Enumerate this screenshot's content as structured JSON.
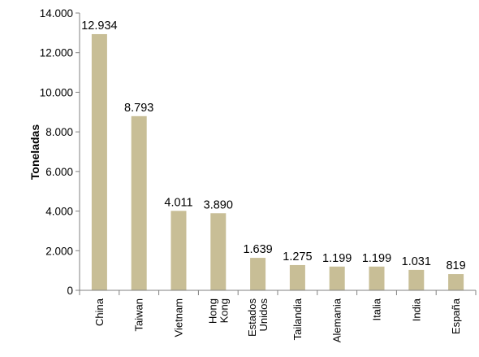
{
  "chart_data": {
    "type": "bar",
    "title": "",
    "xlabel": "",
    "ylabel": "Toneladas",
    "ylim": [
      0,
      14000
    ],
    "yticks": [
      0,
      2000,
      4000,
      6000,
      8000,
      10000,
      12000,
      14000
    ],
    "ytick_labels": [
      "0",
      "2.000",
      "4.000",
      "6.000",
      "8.000",
      "10.000",
      "12.000",
      "14.000"
    ],
    "grid": false,
    "legend": "none",
    "bar_color": "#c8be96",
    "categories": [
      "China",
      "Taiwan",
      "Vietnam",
      "Hong Kong",
      "Estados Unidos",
      "Tailandia",
      "Alemania",
      "Italia",
      "India",
      "España"
    ],
    "category_lines": [
      [
        "China"
      ],
      [
        "Taiwan"
      ],
      [
        "Vietnam"
      ],
      [
        "Hong",
        "Kong"
      ],
      [
        "Estados",
        "Unidos"
      ],
      [
        "Tailandia"
      ],
      [
        "Alemania"
      ],
      [
        "Italia"
      ],
      [
        "India"
      ],
      [
        "España"
      ]
    ],
    "values": [
      12934,
      8793,
      4011,
      3890,
      1639,
      1275,
      1199,
      1199,
      1031,
      819
    ],
    "value_labels": [
      "12.934",
      "8.793",
      "4.011",
      "3.890",
      "1.639",
      "1.275",
      "1.199",
      "1.199",
      "1.031",
      "819"
    ]
  }
}
